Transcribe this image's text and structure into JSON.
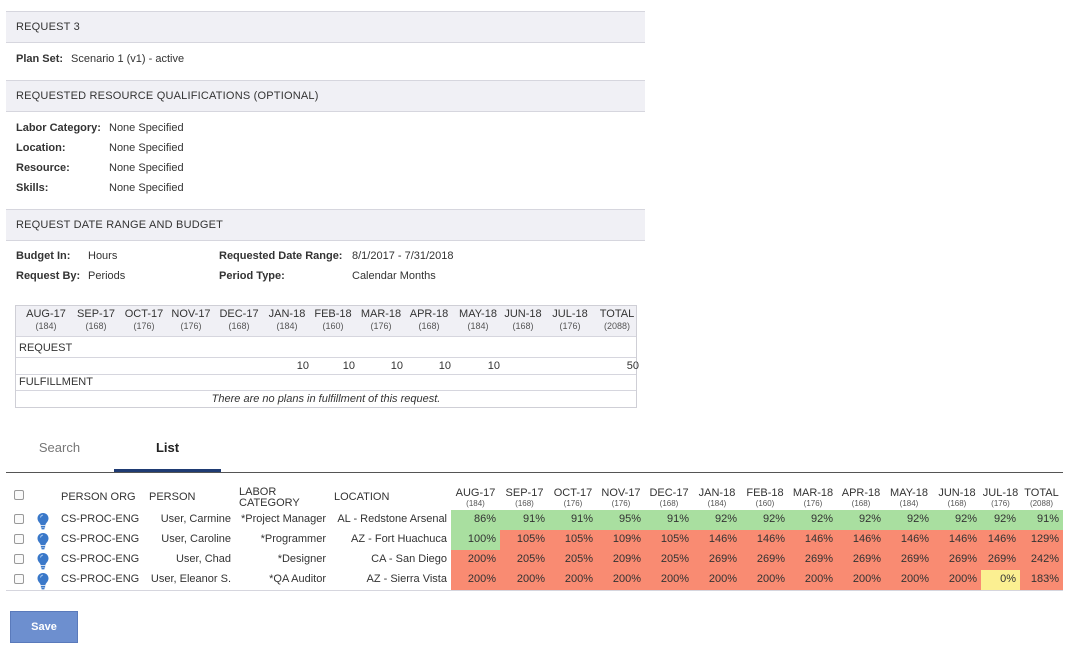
{
  "request": {
    "title": "REQUEST 3",
    "plan_set_label": "Plan Set:",
    "plan_set_value": "Scenario 1 (v1) - active"
  },
  "qualifications": {
    "title": "REQUESTED RESOURCE QUALIFICATIONS (OPTIONAL)",
    "labor_category_label": "Labor Category:",
    "labor_category_value": "None Specified",
    "location_label": "Location:",
    "location_value": "None Specified",
    "resource_label": "Resource:",
    "resource_value": "None Specified",
    "skills_label": "Skills:",
    "skills_value": "None Specified"
  },
  "date_budget": {
    "title": "REQUEST DATE RANGE AND BUDGET",
    "budget_in_label": "Budget In:",
    "budget_in_value": "Hours",
    "request_by_label": "Request By:",
    "request_by_value": "Periods",
    "date_range_label": "Requested Date Range:",
    "date_range_value": "8/1/2017 - 7/31/2018",
    "period_type_label": "Period Type:",
    "period_type_value": "Calendar Months"
  },
  "budget_table": {
    "months": [
      {
        "label": "AUG-17",
        "hours": "(184)"
      },
      {
        "label": "SEP-17",
        "hours": "(168)"
      },
      {
        "label": "OCT-17",
        "hours": "(176)"
      },
      {
        "label": "NOV-17",
        "hours": "(176)"
      },
      {
        "label": "DEC-17",
        "hours": "(168)"
      },
      {
        "label": "JAN-18",
        "hours": "(184)"
      },
      {
        "label": "FEB-18",
        "hours": "(160)"
      },
      {
        "label": "MAR-18",
        "hours": "(176)"
      },
      {
        "label": "APR-18",
        "hours": "(168)"
      },
      {
        "label": "MAY-18",
        "hours": "(184)"
      },
      {
        "label": "JUN-18",
        "hours": "(168)"
      },
      {
        "label": "JUL-18",
        "hours": "(176)"
      },
      {
        "label": "TOTAL",
        "hours": "(2088)"
      }
    ],
    "request_label": "REQUEST",
    "request_values": [
      "",
      "",
      "",
      "",
      "",
      "10",
      "10",
      "10",
      "10",
      "10",
      "",
      "",
      "50"
    ],
    "fulfillment_label": "FULFILLMENT",
    "fulfillment_empty": "There are no plans in fulfillment of this request."
  },
  "tabs": {
    "search": "Search",
    "list": "List"
  },
  "grid": {
    "headers": {
      "person_org": "PERSON ORG",
      "person": "PERSON",
      "labor_category_line1": "LABOR",
      "labor_category_line2": "CATEGORY",
      "location": "LOCATION"
    },
    "months": [
      {
        "label": "AUG-17",
        "hours": "(184)"
      },
      {
        "label": "SEP-17",
        "hours": "(168)"
      },
      {
        "label": "OCT-17",
        "hours": "(176)"
      },
      {
        "label": "NOV-17",
        "hours": "(176)"
      },
      {
        "label": "DEC-17",
        "hours": "(168)"
      },
      {
        "label": "JAN-18",
        "hours": "(184)"
      },
      {
        "label": "FEB-18",
        "hours": "(160)"
      },
      {
        "label": "MAR-18",
        "hours": "(176)"
      },
      {
        "label": "APR-18",
        "hours": "(168)"
      },
      {
        "label": "MAY-18",
        "hours": "(184)"
      },
      {
        "label": "JUN-18",
        "hours": "(168)"
      },
      {
        "label": "JUL-18",
        "hours": "(176)"
      },
      {
        "label": "TOTAL",
        "hours": "(2088)"
      }
    ],
    "rows": [
      {
        "person_org": "CS-PROC-ENG",
        "person": "User, Carmine",
        "labor_category": "*Project Manager",
        "location": "AL - Redstone Arsenal",
        "values": [
          "86%",
          "91%",
          "91%",
          "95%",
          "91%",
          "92%",
          "92%",
          "92%",
          "92%",
          "92%",
          "92%",
          "92%",
          "91%"
        ],
        "status": [
          "g",
          "g",
          "g",
          "g",
          "g",
          "g",
          "g",
          "g",
          "g",
          "g",
          "g",
          "g",
          "g"
        ]
      },
      {
        "person_org": "CS-PROC-ENG",
        "person": "User, Caroline",
        "labor_category": "*Programmer",
        "location": "AZ - Fort Huachuca",
        "values": [
          "100%",
          "105%",
          "105%",
          "109%",
          "105%",
          "146%",
          "146%",
          "146%",
          "146%",
          "146%",
          "146%",
          "146%",
          "129%"
        ],
        "status": [
          "g",
          "r",
          "r",
          "r",
          "r",
          "r",
          "r",
          "r",
          "r",
          "r",
          "r",
          "r",
          "r"
        ]
      },
      {
        "person_org": "CS-PROC-ENG",
        "person": "User, Chad",
        "labor_category": "*Designer",
        "location": "CA - San Diego",
        "values": [
          "200%",
          "205%",
          "205%",
          "209%",
          "205%",
          "269%",
          "269%",
          "269%",
          "269%",
          "269%",
          "269%",
          "269%",
          "242%"
        ],
        "status": [
          "r",
          "r",
          "r",
          "r",
          "r",
          "r",
          "r",
          "r",
          "r",
          "r",
          "r",
          "r",
          "r"
        ]
      },
      {
        "person_org": "CS-PROC-ENG",
        "person": "User, Eleanor S.",
        "labor_category": "*QA Auditor",
        "location": "AZ - Sierra Vista",
        "values": [
          "200%",
          "200%",
          "200%",
          "200%",
          "200%",
          "200%",
          "200%",
          "200%",
          "200%",
          "200%",
          "200%",
          "0%",
          "183%"
        ],
        "status": [
          "r",
          "r",
          "r",
          "r",
          "r",
          "r",
          "r",
          "r",
          "r",
          "r",
          "r",
          "y",
          "r"
        ]
      }
    ],
    "status_colors": {
      "g": "#a9dfa0",
      "r": "#f98b72",
      "y": "#fbef91"
    }
  },
  "save_label": "Save"
}
